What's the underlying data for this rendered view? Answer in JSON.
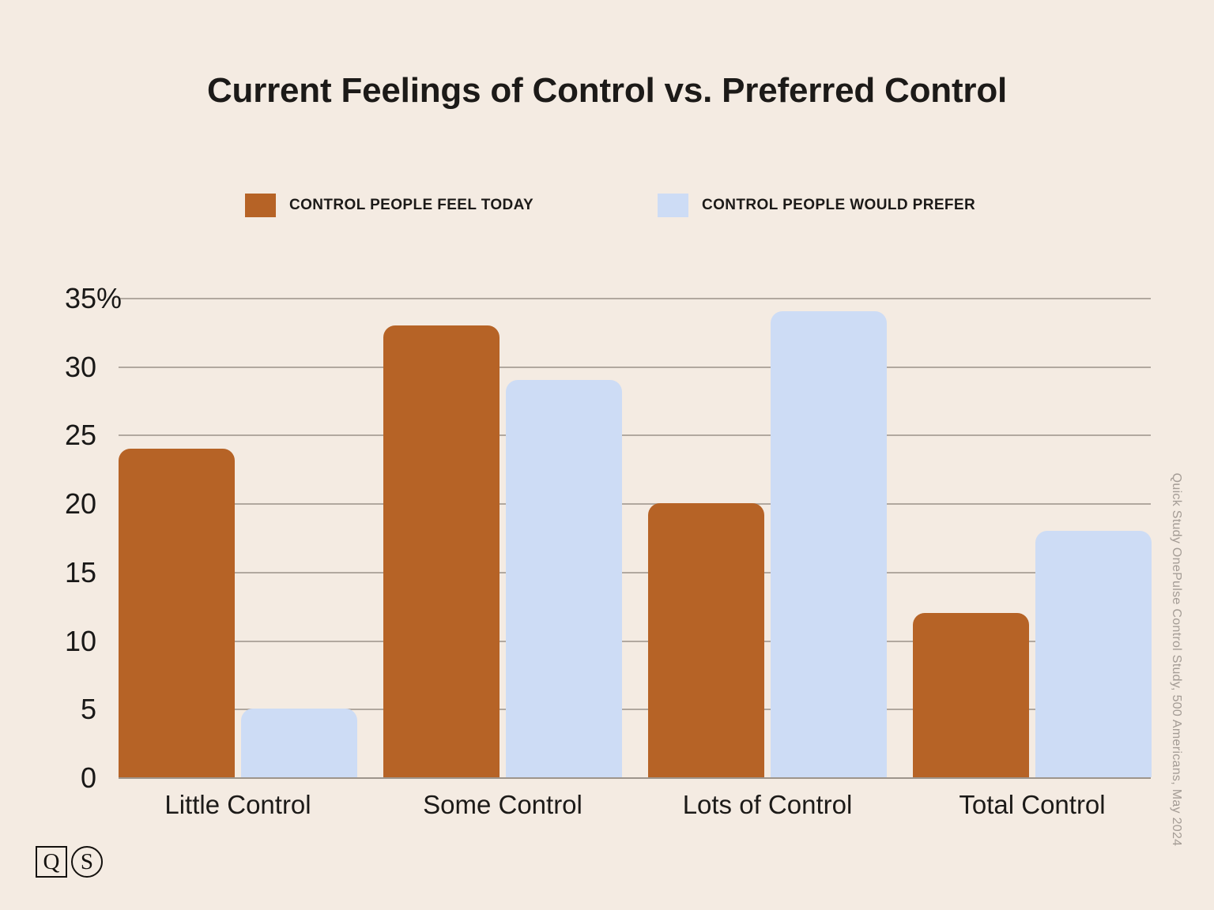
{
  "page": {
    "background": "#f4ebe2"
  },
  "title": "Current Feelings of Control vs. Preferred Control",
  "legend": [
    {
      "label": "CONTROL PEOPLE FEEL TODAY",
      "color": "#b66326"
    },
    {
      "label": "CONTROL PEOPLE WOULD PREFER",
      "color": "#cddcf5"
    }
  ],
  "source_note": "Quick Study OnePulse Control Study, 500 Americans, May 2024",
  "logo": {
    "q_letter": "Q",
    "s_letter": "S"
  },
  "chart_data": {
    "type": "bar",
    "title": "Current Feelings of Control vs. Preferred Control",
    "categories": [
      "Little Control",
      "Some Control",
      "Lots of Control",
      "Total Control"
    ],
    "series": [
      {
        "name": "CONTROL PEOPLE FEEL TODAY",
        "color": "#b66326",
        "values": [
          24,
          33,
          20,
          12
        ]
      },
      {
        "name": "CONTROL PEOPLE WOULD PREFER",
        "color": "#cddcf5",
        "values": [
          5,
          29,
          34,
          18
        ]
      }
    ],
    "xlabel": "",
    "ylabel": "",
    "unit": "percent",
    "ylim": [
      0,
      35
    ],
    "yticks": [
      0,
      5,
      10,
      15,
      20,
      25,
      30,
      35
    ],
    "ytick_labels": [
      "0",
      "5",
      "10",
      "15",
      "20",
      "25",
      "30",
      "35%"
    ],
    "grid": true,
    "legend_position": "top"
  },
  "colors": {
    "background": "#f4ebe2",
    "bar_feel_today": "#b66326",
    "bar_would_prefer": "#cddcf5",
    "gridline": "#b1a89f",
    "text": "#1c1a18",
    "source_text": "#a49c95"
  }
}
